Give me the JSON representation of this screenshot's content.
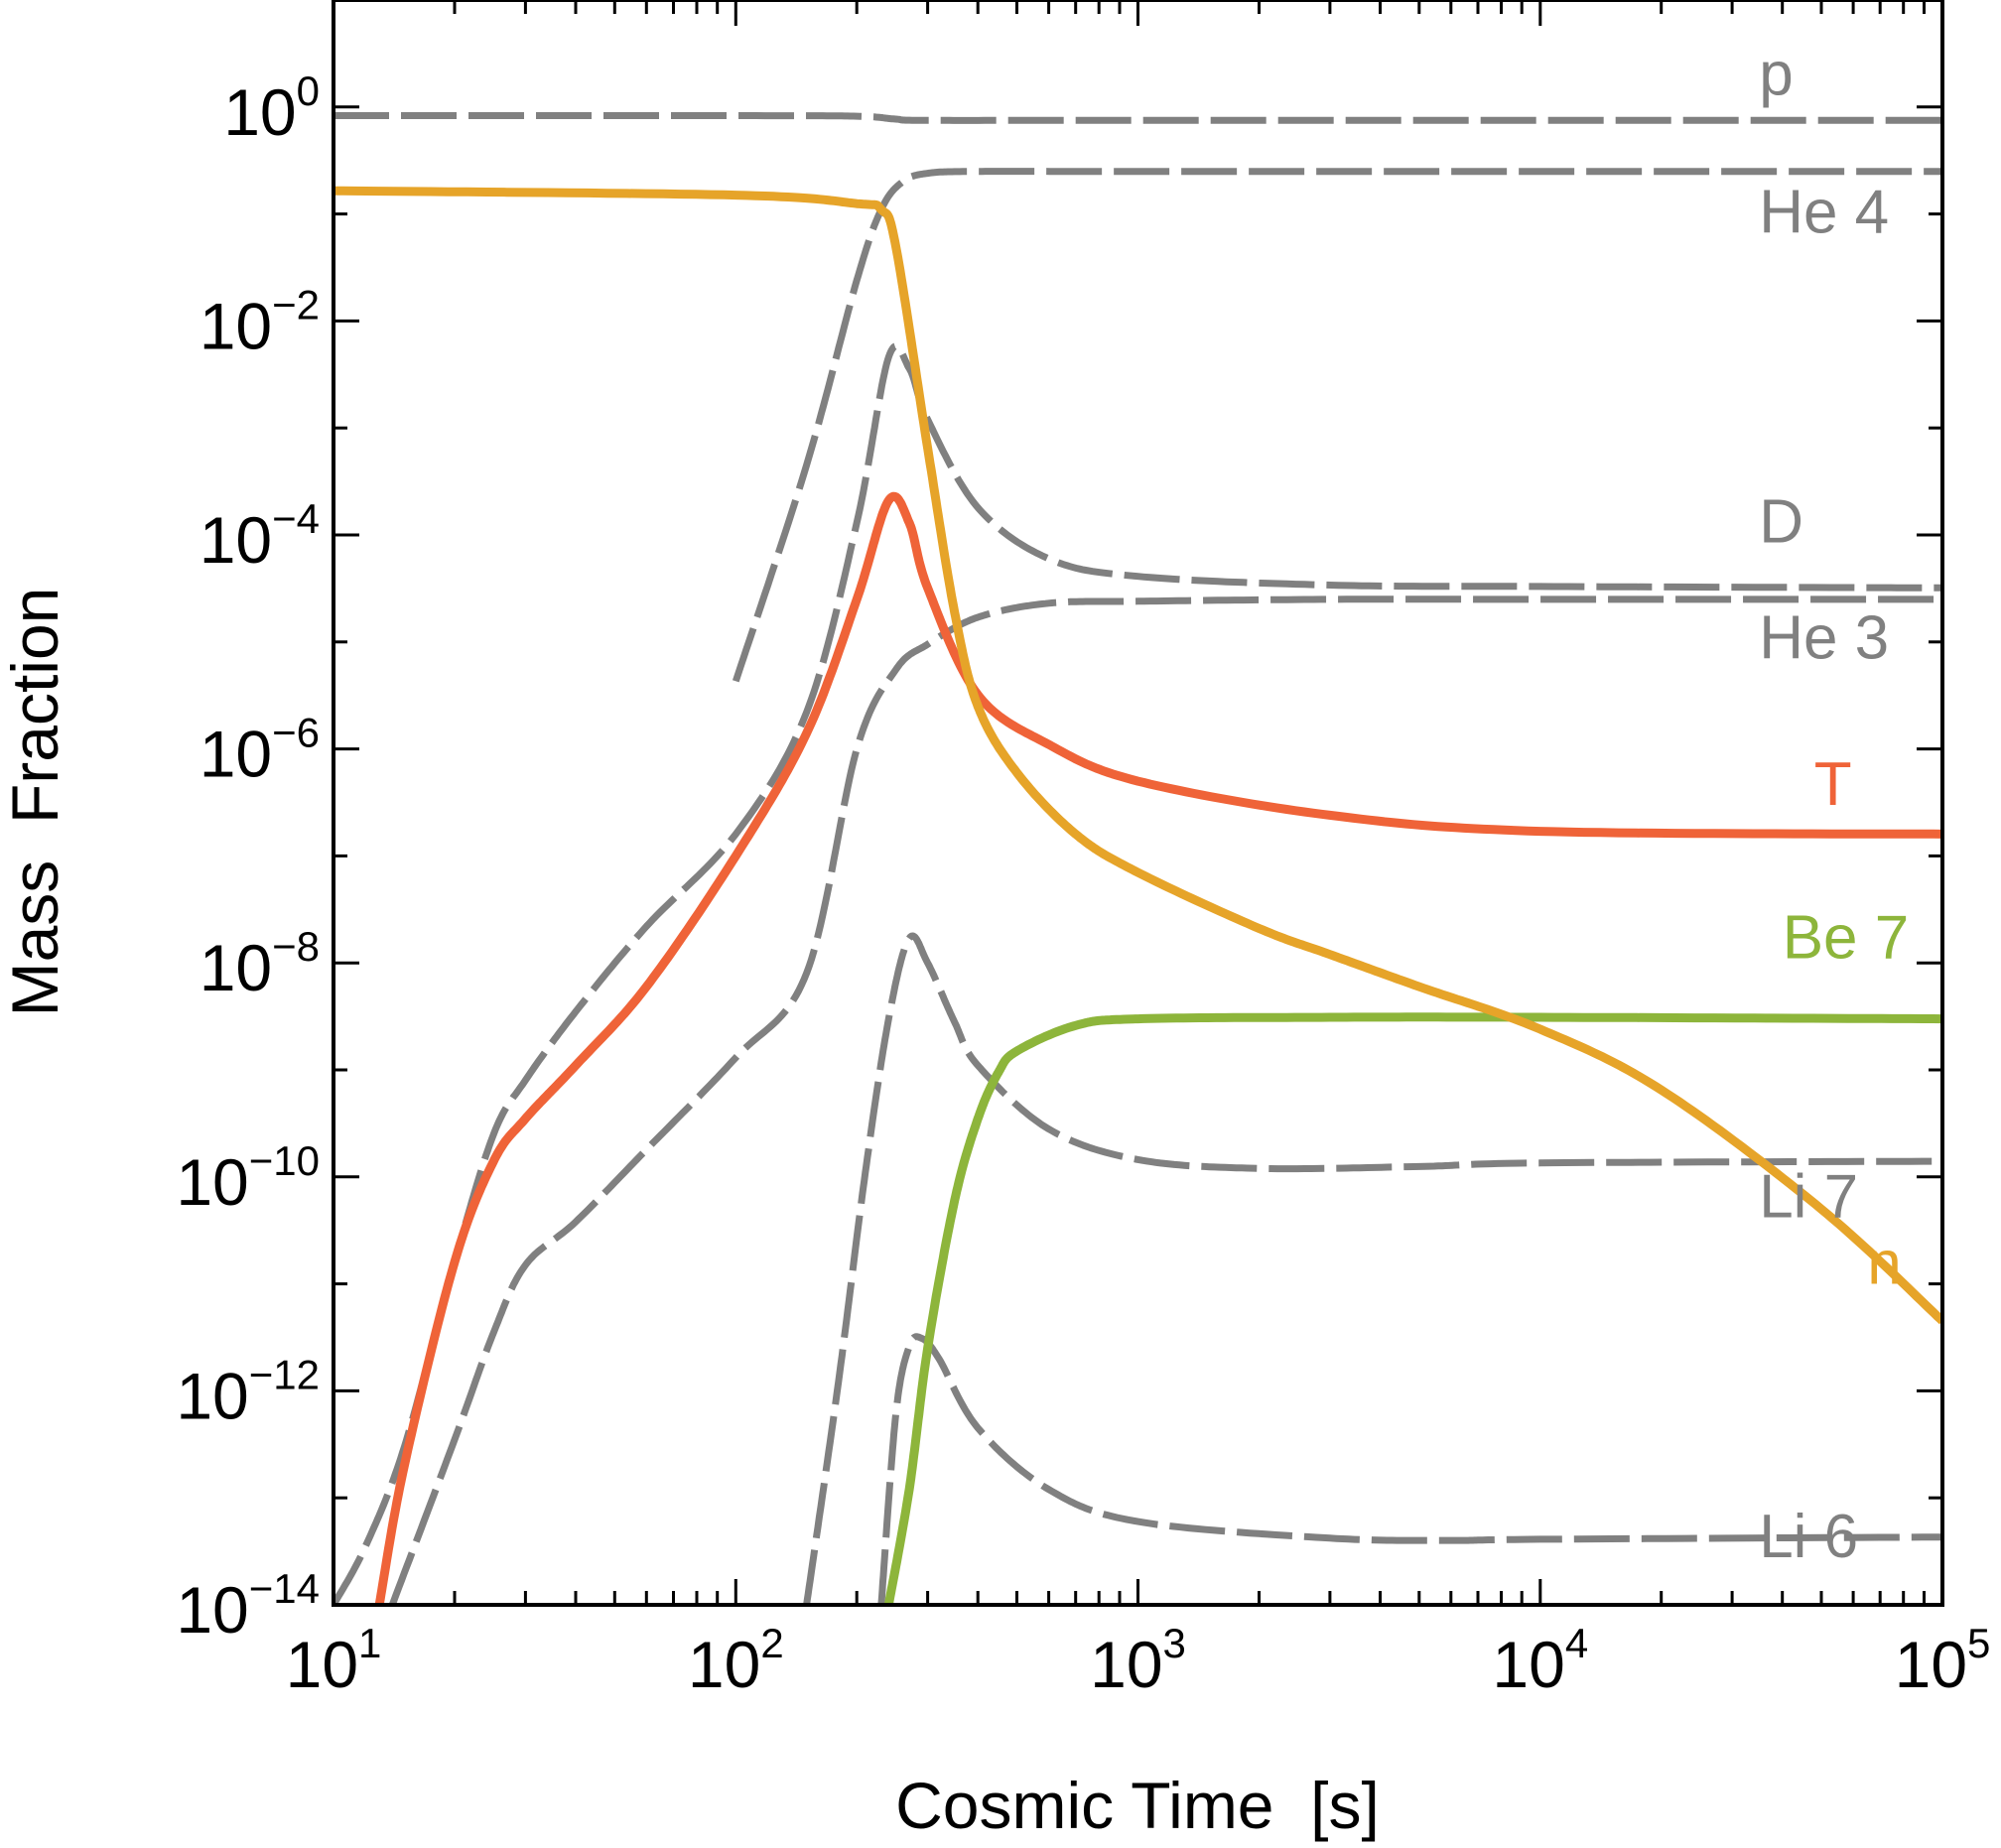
{
  "chart_data": {
    "type": "line",
    "xlabel": "Cosmic Time  [s]",
    "ylabel": "Mass  Fraction",
    "x_scale": "log",
    "y_scale": "log",
    "xlim": [
      10,
      100000
    ],
    "ylim": [
      1e-14,
      10
    ],
    "grid": false,
    "x_ticks": [
      {
        "base": "10",
        "exp": "1",
        "value": 10
      },
      {
        "base": "10",
        "exp": "2",
        "value": 100
      },
      {
        "base": "10",
        "exp": "3",
        "value": 1000
      },
      {
        "base": "10",
        "exp": "4",
        "value": 10000
      },
      {
        "base": "10",
        "exp": "5",
        "value": 100000
      }
    ],
    "y_ticks": [
      {
        "base": "10",
        "exp": "0",
        "value": 1
      },
      {
        "base": "10",
        "exp": "−2",
        "value": 0.01
      },
      {
        "base": "10",
        "exp": "−4",
        "value": 0.0001
      },
      {
        "base": "10",
        "exp": "−6",
        "value": 1e-06
      },
      {
        "base": "10",
        "exp": "−8",
        "value": 1e-08
      },
      {
        "base": "10",
        "exp": "−10",
        "value": 1e-10
      },
      {
        "base": "10",
        "exp": "−12",
        "value": 1e-12
      },
      {
        "base": "10",
        "exp": "−14",
        "value": 1e-14
      }
    ],
    "series": [
      {
        "name": "p",
        "color": "#808080",
        "dashed": true,
        "label_at": [
          35000,
          1.3
        ],
        "points": [
          [
            10,
            0.83
          ],
          [
            100,
            0.83
          ],
          [
            200,
            0.82
          ],
          [
            250,
            0.77
          ],
          [
            300,
            0.75
          ],
          [
            1000,
            0.75
          ],
          [
            100000,
            0.75
          ]
        ]
      },
      {
        "name": "He 4",
        "color": "#808080",
        "dashed": true,
        "label_at": [
          35000,
          0.067
        ],
        "points": [
          [
            100,
            4.3e-06
          ],
          [
            150,
            0.00045
          ],
          [
            200,
            0.024
          ],
          [
            230,
            0.11
          ],
          [
            260,
            0.2
          ],
          [
            300,
            0.24
          ],
          [
            400,
            0.25
          ],
          [
            1000,
            0.25
          ],
          [
            100000,
            0.25
          ]
        ]
      },
      {
        "name": "D",
        "color": "#808080",
        "dashed": true,
        "label_at": [
          35000,
          8.5e-05
        ],
        "points": [
          [
            10,
            1e-14
          ],
          [
            12,
            3.5e-14
          ],
          [
            15,
            3e-13
          ],
          [
            20,
            1.6e-11
          ],
          [
            25,
            2.5e-10
          ],
          [
            30,
            8e-10
          ],
          [
            40,
            3.5e-09
          ],
          [
            60,
            2.2e-08
          ],
          [
            100,
            1.6e-07
          ],
          [
            150,
            2.2e-06
          ],
          [
            200,
            0.00013
          ],
          [
            240,
            0.0046
          ],
          [
            270,
            0.0036
          ],
          [
            300,
            0.0012
          ],
          [
            400,
            0.00018
          ],
          [
            600,
            6e-05
          ],
          [
            1000,
            4.1e-05
          ],
          [
            3000,
            3.4e-05
          ],
          [
            10000,
            3.3e-05
          ],
          [
            100000,
            3.2e-05
          ]
        ]
      },
      {
        "name": "He 3",
        "color": "#808080",
        "dashed": true,
        "label_at": [
          35000,
          7e-06
        ],
        "points": [
          [
            14,
            1e-14
          ],
          [
            20,
            3.5e-13
          ],
          [
            25,
            3.5e-12
          ],
          [
            30,
            1.5e-11
          ],
          [
            40,
            3.8e-11
          ],
          [
            60,
            1.8e-10
          ],
          [
            100,
            1.3e-09
          ],
          [
            150,
            8e-09
          ],
          [
            200,
            1e-06
          ],
          [
            250,
            5.5e-06
          ],
          [
            300,
            9.5e-06
          ],
          [
            400,
            1.7e-05
          ],
          [
            600,
            2.3e-05
          ],
          [
            1000,
            2.4e-05
          ],
          [
            3000,
            2.5e-05
          ],
          [
            10000,
            2.5e-05
          ],
          [
            100000,
            2.5e-05
          ]
        ]
      },
      {
        "name": "T",
        "color": "#ef6338",
        "dashed": false,
        "label_at": [
          48000,
          3e-07
        ],
        "points": [
          [
            13,
            1e-14
          ],
          [
            15,
            2e-13
          ],
          [
            20,
            1.6e-11
          ],
          [
            25,
            1.4e-10
          ],
          [
            30,
            3.5e-10
          ],
          [
            40,
            1.1e-09
          ],
          [
            60,
            6e-09
          ],
          [
            100,
            1e-07
          ],
          [
            150,
            1.4e-06
          ],
          [
            200,
            2.5e-05
          ],
          [
            240,
            0.00021
          ],
          [
            270,
            0.00013
          ],
          [
            300,
            3.2e-05
          ],
          [
            400,
            3.2e-06
          ],
          [
            600,
            1.1e-06
          ],
          [
            1000,
            5e-07
          ],
          [
            3000,
            2.4e-07
          ],
          [
            10000,
            1.7e-07
          ],
          [
            100000,
            1.6e-07
          ]
        ]
      },
      {
        "name": "Be 7",
        "color": "#8db53b",
        "dashed": false,
        "label_at": [
          40000,
          1.1e-08
        ],
        "points": [
          [
            240,
            1e-14
          ],
          [
            270,
            1.2e-13
          ],
          [
            300,
            2.5e-12
          ],
          [
            350,
            6e-11
          ],
          [
            400,
            3.5e-10
          ],
          [
            450,
            9.5e-10
          ],
          [
            500,
            1.5e-09
          ],
          [
            700,
            2.6e-09
          ],
          [
            1000,
            3e-09
          ],
          [
            3000,
            3.1e-09
          ],
          [
            10000,
            3.1e-09
          ],
          [
            100000,
            3e-09
          ]
        ]
      },
      {
        "name": "Li 7",
        "color": "#808080",
        "dashed": true,
        "label_at": [
          35000,
          4.2e-11
        ],
        "points": [
          [
            150,
            1e-14
          ],
          [
            180,
            1.2e-12
          ],
          [
            210,
            1.1e-10
          ],
          [
            240,
            3e-09
          ],
          [
            270,
            1.7e-08
          ],
          [
            300,
            1e-08
          ],
          [
            350,
            2.8e-09
          ],
          [
            400,
            1.1e-09
          ],
          [
            600,
            2.8e-10
          ],
          [
            1000,
            1.45e-10
          ],
          [
            2000,
            1.2e-10
          ],
          [
            5000,
            1.25e-10
          ],
          [
            10000,
            1.35e-10
          ],
          [
            100000,
            1.4e-10
          ]
        ]
      },
      {
        "name": "Li 6",
        "color": "#808080",
        "dashed": true,
        "label_at": [
          35000,
          2.8e-14
        ],
        "points": [
          [
            230,
            1e-14
          ],
          [
            250,
            6e-13
          ],
          [
            270,
            2.6e-12
          ],
          [
            290,
            3.1e-12
          ],
          [
            320,
            2e-12
          ],
          [
            400,
            4.5e-13
          ],
          [
            600,
            1.2e-13
          ],
          [
            1000,
            6e-14
          ],
          [
            3000,
            4.2e-14
          ],
          [
            6000,
            4e-14
          ],
          [
            10000,
            4.1e-14
          ],
          [
            100000,
            4.3e-14
          ]
        ]
      },
      {
        "name": "n",
        "color": "#e6a429",
        "dashed": false,
        "label_at": [
          65000,
          1e-11
        ],
        "points": [
          [
            10,
            0.165
          ],
          [
            100,
            0.15
          ],
          [
            200,
            0.125
          ],
          [
            230,
            0.11
          ],
          [
            250,
            0.05
          ],
          [
            300,
            0.00065
          ],
          [
            350,
            1.9e-05
          ],
          [
            400,
            2.5e-06
          ],
          [
            500,
            6e-07
          ],
          [
            700,
            1.6e-07
          ],
          [
            1000,
            7e-08
          ],
          [
            2000,
            2.1e-08
          ],
          [
            3000,
            1.2e-08
          ],
          [
            5000,
            6e-09
          ],
          [
            10000,
            2.4e-09
          ],
          [
            20000,
            6.5e-10
          ],
          [
            50000,
            5e-11
          ],
          [
            100000,
            4.5e-12
          ]
        ]
      }
    ]
  }
}
